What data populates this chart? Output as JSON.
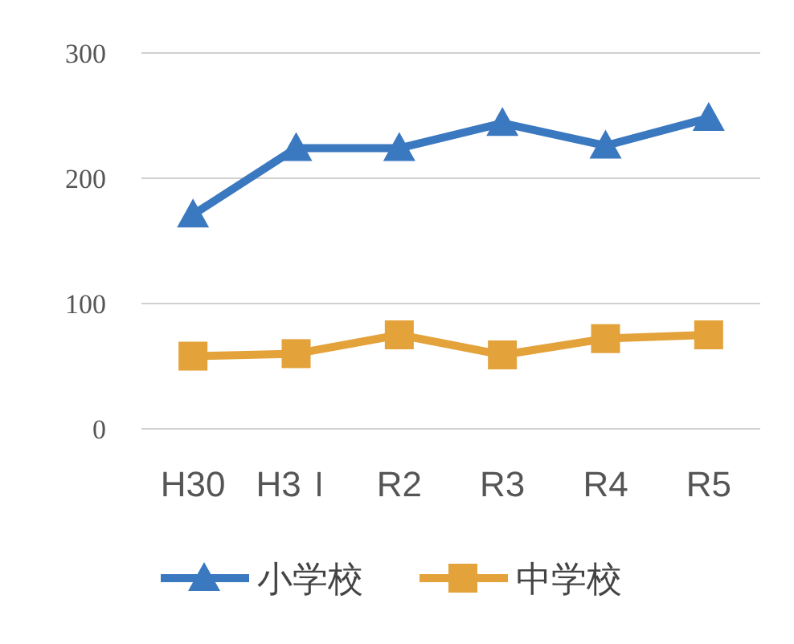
{
  "chart_data": {
    "type": "line",
    "categories": [
      "H30",
      "H3Ｉ",
      "R2",
      "R3",
      "R4",
      "R5"
    ],
    "series": [
      {
        "name": "小学校",
        "color": "#3a78c0",
        "marker": "triangle",
        "values": [
          171,
          224,
          224,
          244,
          226,
          248
        ]
      },
      {
        "name": "中学校",
        "color": "#e3a23a",
        "marker": "square",
        "values": [
          58,
          60,
          75,
          59,
          72,
          75
        ]
      }
    ],
    "ylim": [
      0,
      300
    ],
    "yticks": [
      0,
      100,
      200,
      300
    ],
    "grid": "y",
    "legend": "bottom"
  }
}
